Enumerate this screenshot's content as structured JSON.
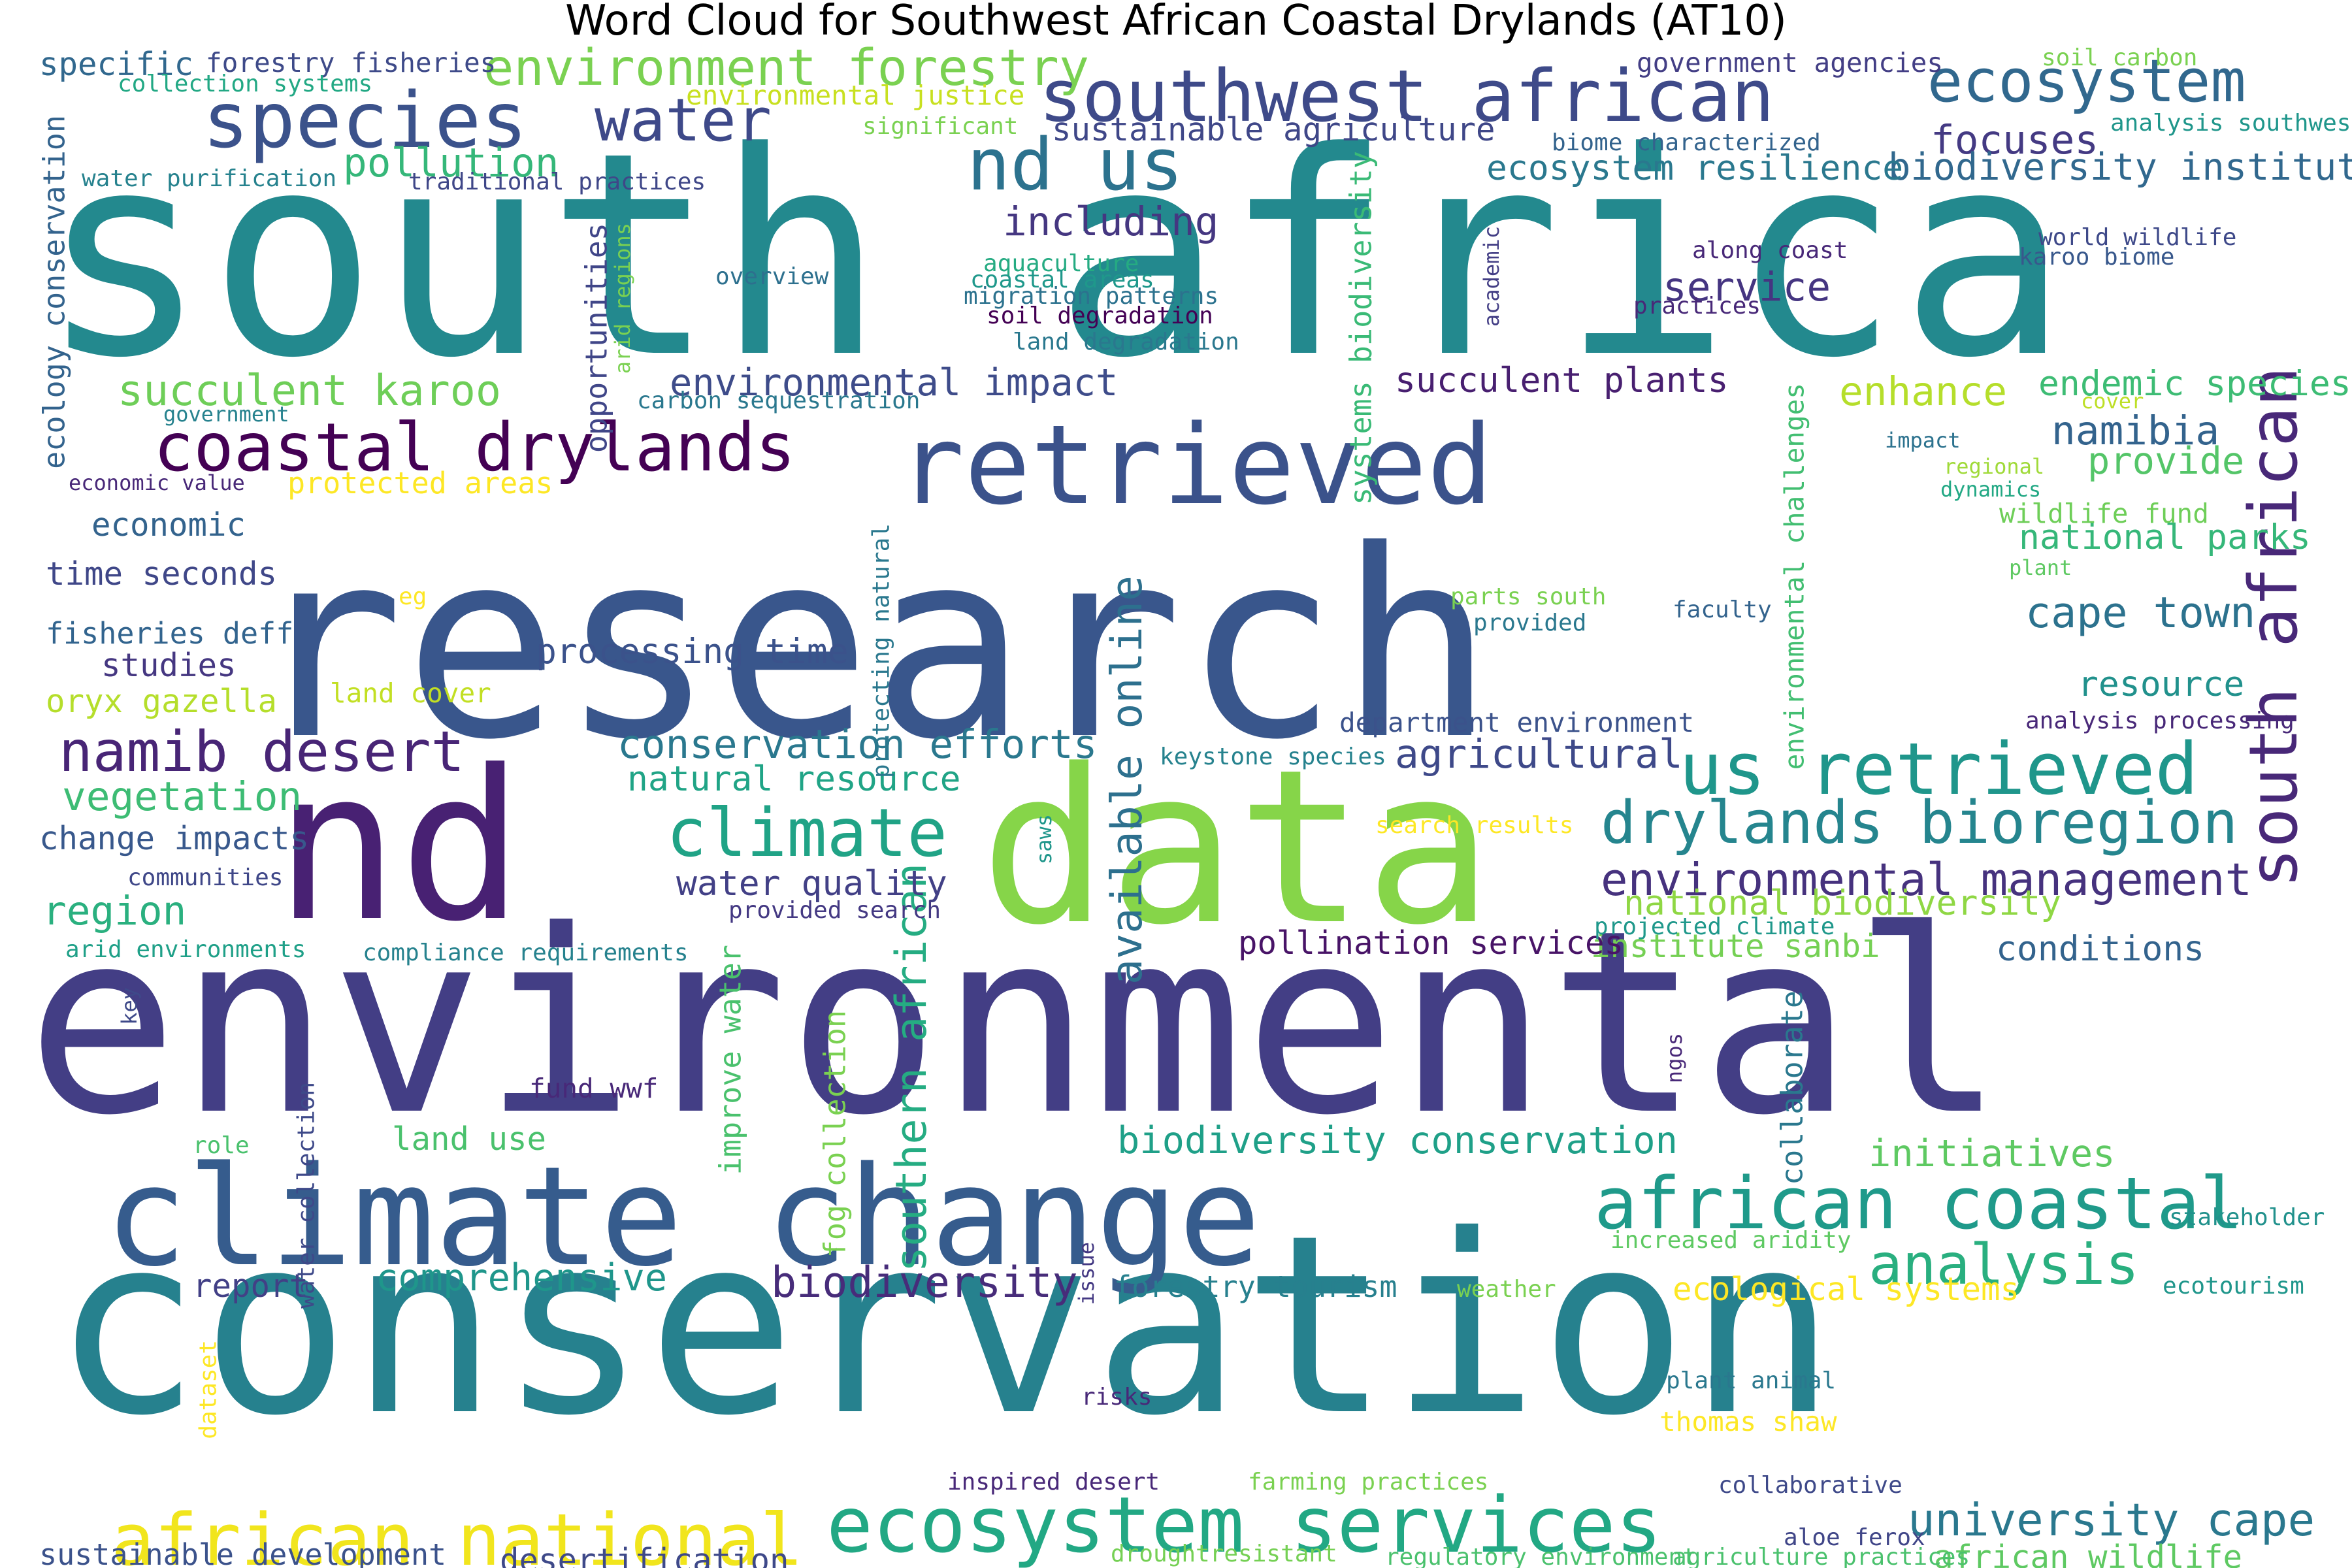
{
  "chart_data": {
    "type": "wordcloud",
    "title": "Word Cloud for Southwest African Coastal Drylands (AT10)",
    "words": [
      {
        "text": "south africa",
        "weight": 100,
        "color": "#23898e"
      },
      {
        "text": "research",
        "weight": 92,
        "color": "#39568c"
      },
      {
        "text": "environmental",
        "weight": 88,
        "color": "#433e85"
      },
      {
        "text": "conservation",
        "weight": 86,
        "color": "#26818e"
      },
      {
        "text": "data",
        "weight": 74,
        "color": "#86d549"
      },
      {
        "text": "nd",
        "weight": 72,
        "color": "#482173"
      },
      {
        "text": "climate change",
        "weight": 50,
        "color": "#365c8d"
      },
      {
        "text": "retrieved",
        "weight": 40,
        "color": "#3b528b"
      },
      {
        "text": "african coastal",
        "weight": 22,
        "color": "#1f9a8a"
      },
      {
        "text": "african national",
        "weight": 22,
        "color": "#f1e51d"
      },
      {
        "text": "ecosystem services",
        "weight": 24,
        "color": "#22a884"
      },
      {
        "text": "southwest african",
        "weight": 22,
        "color": "#3e4a89"
      },
      {
        "text": "species",
        "weight": 24,
        "color": "#3b528b"
      },
      {
        "text": "us retrieved",
        "weight": 22,
        "color": "#1f968b"
      },
      {
        "text": "coastal drylands",
        "weight": 20,
        "color": "#440154"
      },
      {
        "text": "nd us",
        "weight": 22,
        "color": "#2c728e"
      },
      {
        "text": "south african",
        "weight": 20,
        "color": "#482878"
      },
      {
        "text": "namib desert",
        "weight": 16,
        "color": "#482576"
      },
      {
        "text": "climate",
        "weight": 20,
        "color": "#20a386"
      },
      {
        "text": "drylands bioregion",
        "weight": 17,
        "color": "#25858e"
      },
      {
        "text": "ecosystem",
        "weight": 17,
        "color": "#31688e"
      },
      {
        "text": "water",
        "weight": 17,
        "color": "#3e4989"
      },
      {
        "text": "analysis",
        "weight": 16,
        "color": "#29af7f"
      },
      {
        "text": "environment forestry",
        "weight": 14,
        "color": "#7ad151"
      },
      {
        "text": "university cape",
        "weight": 12,
        "color": "#2a788e"
      },
      {
        "text": "environmental management",
        "weight": 12,
        "color": "#46327e"
      },
      {
        "text": "succulent karoo",
        "weight": 11,
        "color": "#6ece58"
      },
      {
        "text": "biodiversity",
        "weight": 11,
        "color": "#472c7a"
      },
      {
        "text": "cape town",
        "weight": 11,
        "color": "#2c728e"
      },
      {
        "text": "available online",
        "weight": 11,
        "color": "#2d708e"
      },
      {
        "text": "southern african",
        "weight": 11,
        "color": "#25ac82"
      },
      {
        "text": "conservation efforts",
        "weight": 10,
        "color": "#2a788e"
      },
      {
        "text": "biodiversity conservation",
        "weight": 9,
        "color": "#1fa088"
      },
      {
        "text": "comprehensive",
        "weight": 9,
        "color": "#1f968b"
      },
      {
        "text": "initiatives",
        "weight": 9,
        "color": "#5ec962"
      },
      {
        "text": "agricultural",
        "weight": 10,
        "color": "#3e4989"
      },
      {
        "text": "environmental impact",
        "weight": 9,
        "color": "#3e4c8a"
      },
      {
        "text": "namibia",
        "weight": 10,
        "color": "#33638d"
      },
      {
        "text": "provide",
        "weight": 9,
        "color": "#54c568"
      },
      {
        "text": "focuses",
        "weight": 10,
        "color": "#443a83"
      },
      {
        "text": "biodiversity institute",
        "weight": 9,
        "color": "#31688e"
      },
      {
        "text": "including",
        "weight": 10,
        "color": "#453781"
      },
      {
        "text": "service",
        "weight": 10,
        "color": "#453581"
      },
      {
        "text": "pollution",
        "weight": 10,
        "color": "#35b779"
      },
      {
        "text": "vegetation",
        "weight": 10,
        "color": "#3dbc74"
      },
      {
        "text": "region",
        "weight": 10,
        "color": "#2ab07f"
      },
      {
        "text": "processing time",
        "weight": 8,
        "color": "#3b528b"
      },
      {
        "text": "water quality",
        "weight": 8,
        "color": "#424086"
      },
      {
        "text": "natural resource",
        "weight": 8,
        "color": "#20a486"
      },
      {
        "text": "enhance",
        "weight": 10,
        "color": "#b5de2b"
      },
      {
        "text": "endemic species",
        "weight": 8,
        "color": "#3dbc74"
      },
      {
        "text": "national parks",
        "weight": 8,
        "color": "#35b779"
      },
      {
        "text": "resource",
        "weight": 8,
        "color": "#21918c"
      },
      {
        "text": "succulent plants",
        "weight": 8,
        "color": "#481f70"
      },
      {
        "text": "national biodiversity",
        "weight": 8,
        "color": "#8fd744"
      },
      {
        "text": "institute sanbi",
        "weight": 7,
        "color": "#75d054"
      },
      {
        "text": "conditions",
        "weight": 8,
        "color": "#33638d"
      },
      {
        "text": "pollination services",
        "weight": 7,
        "color": "#481467"
      },
      {
        "text": "ecosystem resilience",
        "weight": 8,
        "color": "#2a788e"
      },
      {
        "text": "sustainable agriculture",
        "weight": 7,
        "color": "#3f4788"
      },
      {
        "text": "economic",
        "weight": 7,
        "color": "#33638d"
      },
      {
        "text": "time seconds",
        "weight": 7,
        "color": "#3f4788"
      },
      {
        "text": "studies",
        "weight": 7,
        "color": "#453781"
      },
      {
        "text": "fisheries deff",
        "weight": 6,
        "color": "#32648e"
      },
      {
        "text": "oryx gazella",
        "weight": 7,
        "color": "#b5de2b"
      },
      {
        "text": "change impacts",
        "weight": 7,
        "color": "#38588c"
      },
      {
        "text": "report",
        "weight": 7,
        "color": "#424086"
      },
      {
        "text": "land use",
        "weight": 7,
        "color": "#4ac16d"
      },
      {
        "text": "desertification",
        "weight": 7,
        "color": "#3e4989"
      },
      {
        "text": "sustainable development",
        "weight": 6,
        "color": "#3b528b"
      },
      {
        "text": "african wildlife",
        "weight": 7,
        "color": "#5ec962"
      },
      {
        "text": "forestry tourism",
        "weight": 6,
        "color": "#27808e"
      },
      {
        "text": "ecological systems",
        "weight": 7,
        "color": "#fde725"
      },
      {
        "text": "improve water",
        "weight": 6,
        "color": "#4ac16d"
      },
      {
        "text": "fog collection",
        "weight": 6,
        "color": "#7ad151"
      },
      {
        "text": "collaborate",
        "weight": 6,
        "color": "#2a788e"
      },
      {
        "text": "opportunities",
        "weight": 6,
        "color": "#404688"
      },
      {
        "text": "systems biodiversity",
        "weight": 6,
        "color": "#3aba76"
      },
      {
        "text": "environmental challenges",
        "weight": 5,
        "color": "#42be71"
      },
      {
        "text": "ecology conservation",
        "weight": 6,
        "color": "#33638d"
      },
      {
        "text": "specific",
        "weight": 7,
        "color": "#31688e"
      },
      {
        "text": "protected areas",
        "weight": 6,
        "color": "#fde725"
      },
      {
        "text": "wildlife fund",
        "weight": 5,
        "color": "#6ece58"
      },
      {
        "text": "fund wwf",
        "weight": 5,
        "color": "#482878"
      },
      {
        "text": "forestry fisheries",
        "weight": 5,
        "color": "#3e4a89"
      },
      {
        "text": "collection systems",
        "weight": 4,
        "color": "#22a884"
      },
      {
        "text": "environmental justice",
        "weight": 5,
        "color": "#c8e020"
      },
      {
        "text": "significant",
        "weight": 4,
        "color": "#7ad151"
      },
      {
        "text": "water purification",
        "weight": 4,
        "color": "#26828e"
      },
      {
        "text": "traditional practices",
        "weight": 4,
        "color": "#3f4788"
      },
      {
        "text": "government agencies",
        "weight": 5,
        "color": "#433e85"
      },
      {
        "text": "soil carbon",
        "weight": 4,
        "color": "#7ad151"
      },
      {
        "text": "analysis southwest",
        "weight": 4,
        "color": "#1f968b"
      },
      {
        "text": "biome characterized",
        "weight": 4,
        "color": "#33638d"
      },
      {
        "text": "aquaculture",
        "weight": 4,
        "color": "#25ab82"
      },
      {
        "text": "coastal areas",
        "weight": 4,
        "color": "#1f988b"
      },
      {
        "text": "migration patterns",
        "weight": 4,
        "color": "#2c728e"
      },
      {
        "text": "soil degradation",
        "weight": 4,
        "color": "#440154"
      },
      {
        "text": "land degradation",
        "weight": 4,
        "color": "#2a788e"
      },
      {
        "text": "overview",
        "weight": 4,
        "color": "#2d708e"
      },
      {
        "text": "carbon sequestration",
        "weight": 4,
        "color": "#2a788e"
      },
      {
        "text": "along coast",
        "weight": 4,
        "color": "#482878"
      },
      {
        "text": "practices",
        "weight": 4,
        "color": "#482878"
      },
      {
        "text": "world wildlife",
        "weight": 4,
        "color": "#3e4989"
      },
      {
        "text": "karoo biome",
        "weight": 4,
        "color": "#38588c"
      },
      {
        "text": "academic",
        "weight": 3,
        "color": "#433e85"
      },
      {
        "text": "arid regions",
        "weight": 3,
        "color": "#7ad151"
      },
      {
        "text": "government",
        "weight": 3,
        "color": "#26828e"
      },
      {
        "text": "economic value",
        "weight": 3,
        "color": "#482878"
      },
      {
        "text": "impact",
        "weight": 3,
        "color": "#2c728e"
      },
      {
        "text": "regional",
        "weight": 3,
        "color": "#a0da39"
      },
      {
        "text": "cover",
        "weight": 3,
        "color": "#bddf26"
      },
      {
        "text": "dynamics",
        "weight": 3,
        "color": "#22a884"
      },
      {
        "text": "plant",
        "weight": 3,
        "color": "#5ec962"
      },
      {
        "text": "parts south",
        "weight": 4,
        "color": "#7ad151"
      },
      {
        "text": "provided",
        "weight": 4,
        "color": "#2a788e"
      },
      {
        "text": "faculty",
        "weight": 4,
        "color": "#33638d"
      },
      {
        "text": "eg",
        "weight": 4,
        "color": "#fde725"
      },
      {
        "text": "land cover",
        "weight": 5,
        "color": "#c2df23"
      },
      {
        "text": "protecting natural",
        "weight": 4,
        "color": "#2a788e"
      },
      {
        "text": "department environment",
        "weight": 5,
        "color": "#3b528b"
      },
      {
        "text": "analysis processing",
        "weight": 4,
        "color": "#482878"
      },
      {
        "text": "keystone species",
        "weight": 4,
        "color": "#26828e"
      },
      {
        "text": "search results",
        "weight": 4,
        "color": "#fde725"
      },
      {
        "text": "saws",
        "weight": 3,
        "color": "#1f968b"
      },
      {
        "text": "communities",
        "weight": 4,
        "color": "#3f4788"
      },
      {
        "text": "provided search",
        "weight": 4,
        "color": "#443983"
      },
      {
        "text": "projected climate",
        "weight": 4,
        "color": "#1f988b"
      },
      {
        "text": "arid environments",
        "weight": 4,
        "color": "#1fa088"
      },
      {
        "text": "compliance requirements",
        "weight": 4,
        "color": "#26828e"
      },
      {
        "text": "key",
        "weight": 3,
        "color": "#3e4989"
      },
      {
        "text": "ngos",
        "weight": 3,
        "color": "#482878"
      },
      {
        "text": "role",
        "weight": 4,
        "color": "#4ac16d"
      },
      {
        "text": "water collection",
        "weight": 4,
        "color": "#3e4989"
      },
      {
        "text": "issue",
        "weight": 3,
        "color": "#443983"
      },
      {
        "text": "increased aridity",
        "weight": 4,
        "color": "#5ec962"
      },
      {
        "text": "stakeholder",
        "weight": 4,
        "color": "#21918c"
      },
      {
        "text": "weather",
        "weight": 4,
        "color": "#7ad151"
      },
      {
        "text": "ecotourism",
        "weight": 4,
        "color": "#1f968b"
      },
      {
        "text": "dataset",
        "weight": 4,
        "color": "#fde725"
      },
      {
        "text": "plant animal",
        "weight": 4,
        "color": "#2a788e"
      },
      {
        "text": "thomas shaw",
        "weight": 5,
        "color": "#fde725"
      },
      {
        "text": "risks",
        "weight": 4,
        "color": "#482878"
      },
      {
        "text": "inspired desert",
        "weight": 4,
        "color": "#482878"
      },
      {
        "text": "farming practices",
        "weight": 4,
        "color": "#7ad151"
      },
      {
        "text": "collaborative",
        "weight": 4,
        "color": "#3e4989"
      },
      {
        "text": "droughtresistant",
        "weight": 4,
        "color": "#75d054"
      },
      {
        "text": "regulatory environment",
        "weight": 4,
        "color": "#4ac16d"
      },
      {
        "text": "aloe ferox",
        "weight": 4,
        "color": "#404688"
      },
      {
        "text": "agriculture practices",
        "weight": 4,
        "color": "#4ac16d"
      }
    ]
  }
}
